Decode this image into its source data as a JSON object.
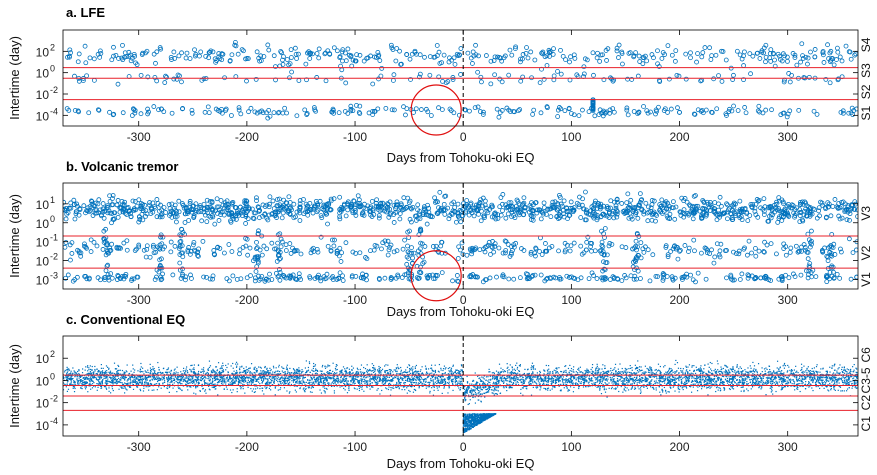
{
  "chart_data": [
    {
      "type": "scatter",
      "title": "a. LFE",
      "xlabel": "Days from Tohoku-oki EQ",
      "ylabel": "Intertime (day)",
      "xlim": [
        -370,
        365
      ],
      "ylim_log10": [
        -5,
        4
      ],
      "yscale": "log",
      "xticks": [
        -300,
        -200,
        -100,
        0,
        100,
        200,
        300
      ],
      "xtick_labels": [
        "-300",
        "-200",
        "-100",
        "0",
        "100",
        "200",
        "300"
      ],
      "yticks": [
        {
          "base": "10",
          "exp": "2",
          "value": 100
        },
        {
          "base": "10",
          "exp": "0",
          "value": 1
        },
        {
          "base": "10",
          "exp": "-2",
          "value": 0.01
        },
        {
          "base": "10",
          "exp": "-4",
          "value": 0.0001
        }
      ],
      "thresholds": [
        3,
        0.3,
        0.003
      ],
      "right_labels": [
        {
          "text": "S4",
          "ylog": 2.6
        },
        {
          "text": "S3",
          "ylog": 0.2
        },
        {
          "text": "S2",
          "ylog": -1.8
        },
        {
          "text": "S1",
          "ylog": -3.8
        }
      ],
      "mainshock_day": 0,
      "circle": {
        "x": -25,
        "ylog": -3.5
      },
      "marker": "open-circle",
      "density": "sparse",
      "color": "#0072BD",
      "threshold_color": "#e8202a"
    },
    {
      "type": "scatter",
      "title": "b. Volcanic tremor",
      "xlabel": "Days from Tohoku-oki EQ",
      "ylabel": "Intertime (day)",
      "xlim": [
        -370,
        365
      ],
      "ylim_log10": [
        -3.5,
        2.1
      ],
      "yscale": "log",
      "xticks": [
        -300,
        -200,
        -100,
        0,
        100,
        200,
        300
      ],
      "xtick_labels": [
        "-300",
        "-200",
        "-100",
        "0",
        "100",
        "200",
        "300"
      ],
      "yticks": [
        {
          "base": "10",
          "exp": "1",
          "value": 10
        },
        {
          "base": "10",
          "exp": "0",
          "value": 1
        },
        {
          "base": "10",
          "exp": "-1",
          "value": 0.1
        },
        {
          "base": "10",
          "exp": "-2",
          "value": 0.01
        },
        {
          "base": "10",
          "exp": "-3",
          "value": 0.001
        }
      ],
      "thresholds": [
        0.2,
        0.004
      ],
      "right_labels": [
        {
          "text": "V3",
          "ylog": 0.5
        },
        {
          "text": "V2",
          "ylog": -1.6
        },
        {
          "text": "V1",
          "ylog": -3.0
        }
      ],
      "mainshock_day": 0,
      "circle": {
        "x": -25,
        "ylog": -2.8
      },
      "marker": "open-circle",
      "density": "dense",
      "color": "#0072BD",
      "threshold_color": "#e8202a"
    },
    {
      "type": "scatter",
      "title": "c. Conventional EQ",
      "xlabel": "Days from Tohoku-oki EQ",
      "ylabel": "Intertime (day)",
      "xlim": [
        -370,
        365
      ],
      "ylim_log10": [
        -5,
        4
      ],
      "yscale": "log",
      "xticks": [
        -300,
        -200,
        -100,
        0,
        100,
        200,
        300
      ],
      "xtick_labels": [
        "-300",
        "-200",
        "-100",
        "0",
        "100",
        "200",
        "300"
      ],
      "yticks": [
        {
          "base": "10",
          "exp": "2",
          "value": 100
        },
        {
          "base": "10",
          "exp": "0",
          "value": 1
        },
        {
          "base": "10",
          "exp": "-2",
          "value": 0.01
        },
        {
          "base": "10",
          "exp": "-4",
          "value": 0.0001
        }
      ],
      "thresholds": [
        3,
        0.35,
        0.04,
        0.002
      ],
      "right_labels": [
        {
          "text": "C6",
          "ylog": 2.3
        },
        {
          "text": "C3-5",
          "ylog": 0.0
        },
        {
          "text": "C2",
          "ylog": -2.0
        },
        {
          "text": "C1",
          "ylog": -3.9
        }
      ],
      "mainshock_day": 0,
      "marker": "dot",
      "density": "very-dense",
      "color": "#0072BD",
      "threshold_color": "#e8202a"
    }
  ]
}
